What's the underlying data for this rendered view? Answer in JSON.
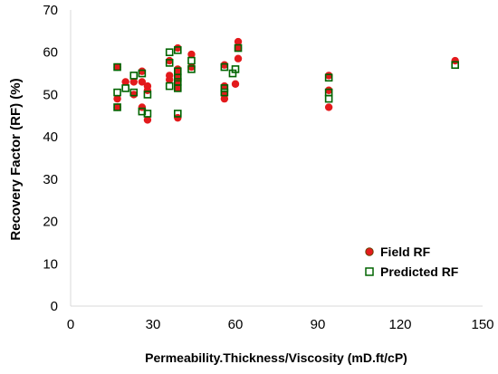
{
  "chart_data": {
    "type": "scatter",
    "title": "",
    "xlabel": "Permeability.Thickness/Viscosity  (mD.ft/cP)",
    "ylabel": "Recovery Factor (RF) (%)",
    "xlim": [
      0,
      150
    ],
    "ylim": [
      0,
      70
    ],
    "x_ticks": [
      0,
      30,
      60,
      90,
      120,
      150
    ],
    "y_ticks": [
      0,
      10,
      20,
      30,
      40,
      50,
      60,
      70
    ],
    "grid": false,
    "legend_position": "bottom-right",
    "series": [
      {
        "name": "Field RF",
        "marker": "circle",
        "color": "#e31a1c",
        "points": [
          [
            17,
            56.5
          ],
          [
            17,
            47
          ],
          [
            17,
            49
          ],
          [
            20,
            53
          ],
          [
            23,
            53
          ],
          [
            23,
            50
          ],
          [
            26,
            55.5
          ],
          [
            26,
            53
          ],
          [
            26,
            47
          ],
          [
            28,
            52
          ],
          [
            28,
            51
          ],
          [
            28,
            44
          ],
          [
            36,
            58
          ],
          [
            36,
            54.5
          ],
          [
            36,
            53.5
          ],
          [
            39,
            61
          ],
          [
            39,
            56
          ],
          [
            39,
            55
          ],
          [
            39,
            54
          ],
          [
            39,
            53
          ],
          [
            39,
            52
          ],
          [
            39,
            51.5
          ],
          [
            39,
            44.5
          ],
          [
            44,
            59.5
          ],
          [
            44,
            56.5
          ],
          [
            56,
            57
          ],
          [
            56,
            52
          ],
          [
            56,
            50
          ],
          [
            56,
            49
          ],
          [
            60,
            52.5
          ],
          [
            61,
            62.5
          ],
          [
            61,
            61
          ],
          [
            61,
            58.5
          ],
          [
            94,
            54.5
          ],
          [
            94,
            51
          ],
          [
            94,
            47
          ],
          [
            140,
            58
          ]
        ]
      },
      {
        "name": "Predicted RF",
        "marker": "square-open",
        "color": "#006400",
        "points": [
          [
            17,
            56.5
          ],
          [
            17,
            50.5
          ],
          [
            17,
            47
          ],
          [
            20,
            51.5
          ],
          [
            23,
            54.5
          ],
          [
            23,
            50.5
          ],
          [
            26,
            55
          ],
          [
            26,
            46
          ],
          [
            28,
            50
          ],
          [
            28,
            45.5
          ],
          [
            36,
            60
          ],
          [
            36,
            57.5
          ],
          [
            36,
            52
          ],
          [
            39,
            60.5
          ],
          [
            39,
            55.5
          ],
          [
            39,
            54
          ],
          [
            39,
            53
          ],
          [
            39,
            51.5
          ],
          [
            39,
            45.5
          ],
          [
            44,
            58
          ],
          [
            44,
            56
          ],
          [
            56,
            56.5
          ],
          [
            56,
            51.5
          ],
          [
            56,
            50.5
          ],
          [
            59,
            55
          ],
          [
            60,
            56
          ],
          [
            61,
            61
          ],
          [
            94,
            54
          ],
          [
            94,
            50.5
          ],
          [
            94,
            49
          ],
          [
            140,
            57
          ]
        ]
      }
    ]
  }
}
